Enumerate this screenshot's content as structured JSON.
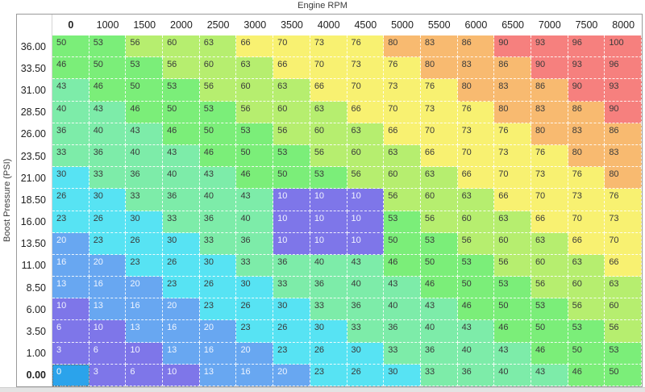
{
  "header": {
    "title": "Engine RPM"
  },
  "y_axis": {
    "label": "Boost Pressure (PSI)"
  },
  "chart_data": {
    "type": "heatmap",
    "xlabel": "Engine RPM",
    "ylabel": "Boost Pressure (PSI)",
    "columns": [
      "0",
      "1000",
      "1500",
      "2000",
      "2500",
      "3000",
      "3500",
      "4000",
      "4500",
      "5000",
      "5500",
      "6000",
      "6500",
      "7000",
      "7500",
      "8000"
    ],
    "rows": [
      "36.00",
      "33.50",
      "31.00",
      "28.50",
      "26.00",
      "23.50",
      "21.00",
      "18.50",
      "16.00",
      "13.50",
      "11.00",
      "8.50",
      "6.00",
      "3.50",
      "1.00",
      "0.00"
    ],
    "values": [
      [
        50,
        53,
        56,
        60,
        63,
        66,
        70,
        73,
        76,
        80,
        83,
        86,
        90,
        93,
        96,
        100
      ],
      [
        46,
        50,
        53,
        56,
        60,
        63,
        66,
        70,
        73,
        76,
        80,
        83,
        86,
        90,
        93,
        96
      ],
      [
        43,
        46,
        50,
        53,
        56,
        60,
        63,
        66,
        70,
        73,
        76,
        80,
        83,
        86,
        90,
        93
      ],
      [
        40,
        43,
        46,
        50,
        53,
        56,
        60,
        63,
        66,
        70,
        73,
        76,
        80,
        83,
        86,
        90
      ],
      [
        36,
        40,
        43,
        46,
        50,
        53,
        56,
        60,
        63,
        66,
        70,
        73,
        76,
        80,
        83,
        86
      ],
      [
        33,
        36,
        40,
        43,
        46,
        50,
        53,
        56,
        60,
        63,
        66,
        70,
        73,
        76,
        80,
        83
      ],
      [
        30,
        33,
        36,
        40,
        43,
        46,
        50,
        53,
        56,
        60,
        63,
        66,
        70,
        73,
        76,
        80
      ],
      [
        26,
        30,
        33,
        36,
        40,
        43,
        10,
        10,
        10,
        56,
        60,
        63,
        66,
        70,
        73,
        76
      ],
      [
        23,
        26,
        30,
        33,
        36,
        40,
        10,
        10,
        10,
        53,
        56,
        60,
        63,
        66,
        70,
        73
      ],
      [
        20,
        23,
        26,
        30,
        33,
        36,
        10,
        10,
        10,
        50,
        53,
        56,
        60,
        63,
        66,
        70
      ],
      [
        16,
        20,
        23,
        26,
        30,
        33,
        36,
        40,
        43,
        46,
        50,
        53,
        56,
        60,
        63,
        66
      ],
      [
        13,
        16,
        20,
        23,
        26,
        30,
        33,
        36,
        40,
        43,
        46,
        50,
        53,
        56,
        60,
        63
      ],
      [
        10,
        13,
        16,
        20,
        23,
        26,
        30,
        33,
        36,
        40,
        43,
        46,
        50,
        53,
        56,
        60
      ],
      [
        6,
        10,
        13,
        16,
        20,
        23,
        26,
        30,
        33,
        36,
        40,
        43,
        46,
        50,
        53,
        56
      ],
      [
        3,
        6,
        10,
        13,
        16,
        20,
        23,
        26,
        30,
        33,
        36,
        40,
        43,
        46,
        50,
        53
      ],
      [
        0,
        3,
        6,
        10,
        13,
        16,
        20,
        23,
        26,
        30,
        33,
        36,
        40,
        43,
        46,
        50
      ]
    ],
    "selected_cell": {
      "row_index": 15,
      "col_index": 0,
      "row": "0.00",
      "column": "0",
      "value": 0
    },
    "palette": [
      {
        "max": 10,
        "bg": "#7e76e9",
        "text": "#f0f2ff"
      },
      {
        "max": 20,
        "bg": "#68a7f1",
        "text": "#eef4ff"
      },
      {
        "max": 30,
        "bg": "#57e3f3",
        "text": "#3a3a3a"
      },
      {
        "max": 43,
        "bg": "#7deca9",
        "text": "#3a3a3a"
      },
      {
        "max": 53,
        "bg": "#7bee79",
        "text": "#3a3a3a"
      },
      {
        "max": 63,
        "bg": "#b6ee6f",
        "text": "#3a3a3a"
      },
      {
        "max": 76,
        "bg": "#f8f171",
        "text": "#3a3a3a"
      },
      {
        "max": 86,
        "bg": "#f8ba70",
        "text": "#3a3a3a"
      },
      {
        "max": 100,
        "bg": "#f6807e",
        "text": "#3a3a3a"
      }
    ],
    "selected_bg": "#2ba3eb",
    "selected_text": "#ffffff",
    "grid": true,
    "legend_position": "none"
  }
}
